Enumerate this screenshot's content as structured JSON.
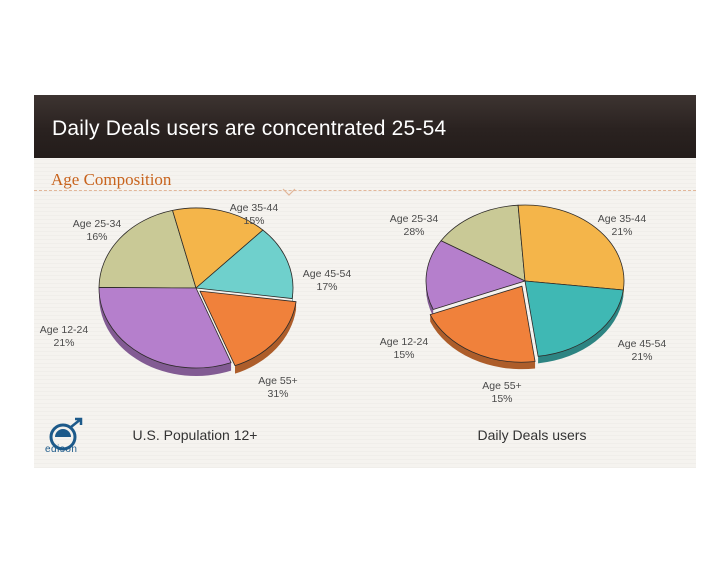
{
  "header": {
    "title": "Daily Deals users are concentrated 25-54"
  },
  "section": {
    "title": "Age Composition"
  },
  "logo": {
    "text": "edison"
  },
  "chart_data": [
    {
      "type": "pie",
      "title": "U.S. Population 12+",
      "slices": [
        {
          "label": "Age 12-24",
          "value": 21,
          "pct": "21%",
          "color": "#c9c996"
        },
        {
          "label": "Age 25-34",
          "value": 16,
          "pct": "16%",
          "color": "#f4b54a"
        },
        {
          "label": "Age 35-44",
          "value": 15,
          "pct": "15%",
          "color": "#6fd0cc"
        },
        {
          "label": "Age 45-54",
          "value": 17,
          "pct": "17%",
          "color": "#f0813b"
        },
        {
          "label": "Age 55+",
          "value": 31,
          "pct": "31%",
          "color": "#b57fcc"
        }
      ]
    },
    {
      "type": "pie",
      "title": "Daily Deals users",
      "slices": [
        {
          "label": "Age 12-24",
          "value": 15,
          "pct": "15%",
          "color": "#c9c996"
        },
        {
          "label": "Age 25-34",
          "value": 28,
          "pct": "28%",
          "color": "#f4b54a"
        },
        {
          "label": "Age 35-44",
          "value": 21,
          "pct": "21%",
          "color": "#3fb8b4"
        },
        {
          "label": "Age 45-54",
          "value": 21,
          "pct": "21%",
          "color": "#f0813b"
        },
        {
          "label": "Age 55+",
          "value": 15,
          "pct": "15%",
          "color": "#b57fcc"
        }
      ]
    }
  ]
}
